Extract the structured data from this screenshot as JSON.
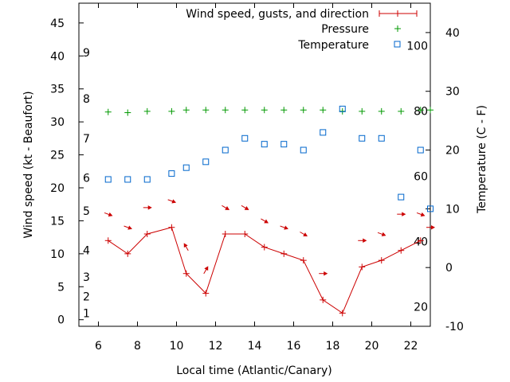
{
  "chart_data": {
    "type": "line",
    "xlabel": "Local time (Atlantic/Canary)",
    "ylabel_left": "Wind speed (kt - Beaufort)",
    "ylabel_right": "Temperature (C - F)",
    "x_ticks": [
      "6",
      "8",
      "10",
      "12",
      "14",
      "16",
      "18",
      "20",
      "22"
    ],
    "y_left_ticks": [
      "0",
      "5",
      "10",
      "15",
      "20",
      "25",
      "30",
      "35",
      "40",
      "45"
    ],
    "y_right_ticks": [
      "-10",
      "0",
      "10",
      "20",
      "30",
      "40"
    ],
    "beaufort_labels": [
      "1",
      "2",
      "3",
      "4",
      "5",
      "6",
      "7",
      "8",
      "9"
    ],
    "fahrenheit_labels": [
      "20",
      "40",
      "60",
      "80",
      "100"
    ],
    "xlim": [
      5,
      23
    ],
    "ylim_left": [
      -1,
      48
    ],
    "ylim_right": [
      -10,
      45
    ],
    "grid": false,
    "legend_position": "top-right",
    "colors": {
      "wind": "#cc0000",
      "pressure": "#009900",
      "temperature": "#0066cc"
    },
    "series": [
      {
        "name": "Wind speed, gusts, and direction",
        "kind": "line",
        "x": [
          6.5,
          7.5,
          8.5,
          9.75,
          10.5,
          11.5,
          12.5,
          13.5,
          14.5,
          15.5,
          16.5,
          17.5,
          18.5,
          19.5,
          20.5,
          21.5,
          22.5
        ],
        "y": [
          12,
          10,
          13,
          14,
          7,
          4,
          13,
          13,
          11,
          10,
          9,
          3,
          1,
          8,
          9,
          10.5,
          12
        ],
        "arrows": [
          {
            "x": 6.5,
            "y": 16,
            "dir": 20
          },
          {
            "x": 7.5,
            "y": 14,
            "dir": 20
          },
          {
            "x": 8.5,
            "y": 17,
            "dir": 0
          },
          {
            "x": 9.75,
            "y": 18,
            "dir": 20
          },
          {
            "x": 10.5,
            "y": 11,
            "dir": 240
          },
          {
            "x": 11.5,
            "y": 7.5,
            "dir": 300
          },
          {
            "x": 12.5,
            "y": 17,
            "dir": 30
          },
          {
            "x": 13.5,
            "y": 17,
            "dir": 30
          },
          {
            "x": 14.5,
            "y": 15,
            "dir": 30
          },
          {
            "x": 15.5,
            "y": 14,
            "dir": 20
          },
          {
            "x": 16.5,
            "y": 13,
            "dir": 30
          },
          {
            "x": 17.5,
            "y": 7,
            "dir": 0
          },
          {
            "x": 19.5,
            "y": 12,
            "dir": 0
          },
          {
            "x": 20.5,
            "y": 13,
            "dir": 20
          },
          {
            "x": 21.5,
            "y": 16,
            "dir": 0
          },
          {
            "x": 22.5,
            "y": 16,
            "dir": 20
          },
          {
            "x": 23.0,
            "y": 14,
            "dir": 0
          }
        ]
      },
      {
        "name": "Pressure",
        "kind": "points",
        "x": [
          6.5,
          7.5,
          8.5,
          9.75,
          10.5,
          11.5,
          12.5,
          13.5,
          14.5,
          15.5,
          16.5,
          17.5,
          18.5,
          19.5,
          20.5,
          21.5,
          22.5,
          23.0
        ],
        "y": [
          31.5,
          31.4,
          31.6,
          31.6,
          31.8,
          31.8,
          31.8,
          31.8,
          31.8,
          31.8,
          31.8,
          31.8,
          31.6,
          31.6,
          31.6,
          31.6,
          31.8,
          31.8
        ]
      },
      {
        "name": "Temperature",
        "kind": "points",
        "x": [
          6.5,
          7.5,
          8.5,
          9.75,
          10.5,
          11.5,
          12.5,
          13.5,
          14.5,
          15.5,
          16.5,
          17.5,
          18.5,
          19.5,
          20.5,
          21.5,
          22.5,
          23.0
        ],
        "y": [
          15,
          15,
          15,
          16,
          17,
          18,
          20,
          22,
          21,
          21,
          20,
          23,
          27,
          22,
          22,
          12,
          20,
          10
        ]
      }
    ]
  }
}
